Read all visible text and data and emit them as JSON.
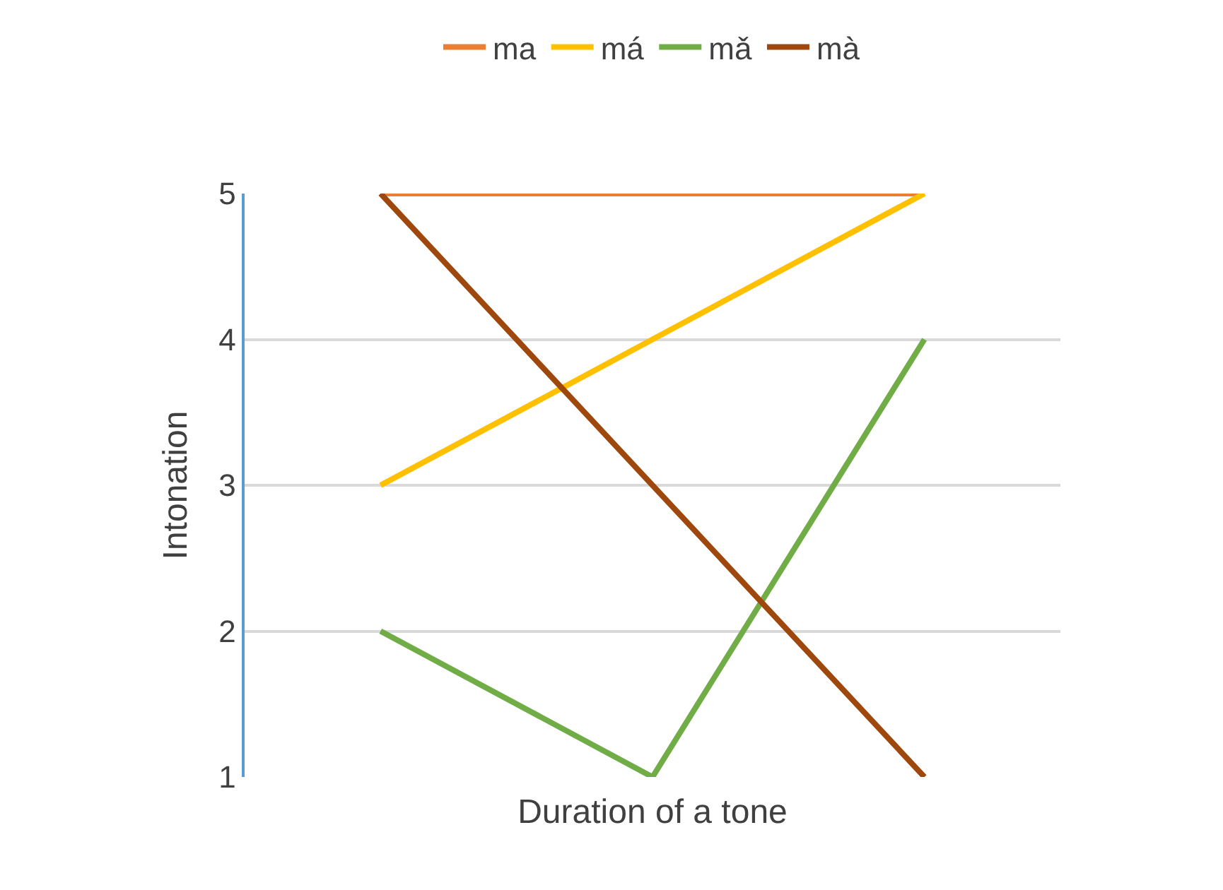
{
  "chart_data": {
    "type": "line",
    "xlabel": "Duration of a tone",
    "ylabel": "Intonation",
    "categories": [
      null,
      null,
      null
    ],
    "series": [
      {
        "name": "ma",
        "color": "#ed7d31",
        "values": [
          5,
          5,
          5
        ]
      },
      {
        "name": "má",
        "color": "#ffc000",
        "values": [
          3,
          4,
          5
        ]
      },
      {
        "name": "mǎ",
        "color": "#70ad47",
        "values": [
          2,
          1,
          4
        ]
      },
      {
        "name": "mà",
        "color": "#9e480e",
        "values": [
          5,
          3,
          1
        ]
      }
    ],
    "ylim": [
      1,
      5
    ],
    "yticks": [
      1,
      2,
      3,
      4,
      5
    ],
    "grid": "y",
    "legend": "top",
    "tick_labels": "y",
    "marker": "none",
    "line_style": "solid"
  }
}
